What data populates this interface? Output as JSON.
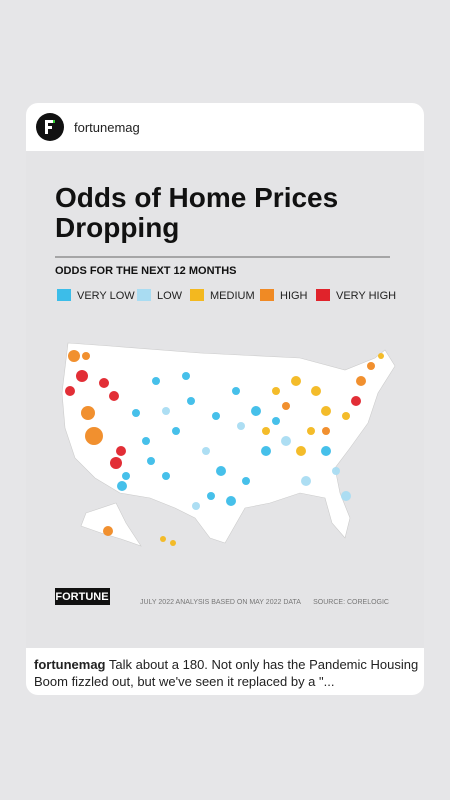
{
  "post": {
    "username": "fortunemag",
    "image": {
      "title": "Odds of Home Prices Dropping",
      "subtitle": "ODDS FOR THE NEXT 12 MONTHS",
      "legend": [
        {
          "label": "VERY LOW",
          "color": "#3cbde9"
        },
        {
          "label": "LOW",
          "color": "#a9dcf2"
        },
        {
          "label": "MEDIUM",
          "color": "#f3b81f"
        },
        {
          "label": "HIGH",
          "color": "#f08a24"
        },
        {
          "label": "VERY HIGH",
          "color": "#e0232b"
        }
      ],
      "brand": "FORTUNE",
      "note": "JULY 2022 ANALYSIS BASED ON MAY 2022 DATA",
      "source": "SOURCE: CORELOGIC"
    },
    "caption": {
      "username": "fortunemag",
      "text": "Talk about a 180. Not only has the Pandemic Housing Boom fizzled out, but we've seen it replaced by a \"..."
    }
  }
}
